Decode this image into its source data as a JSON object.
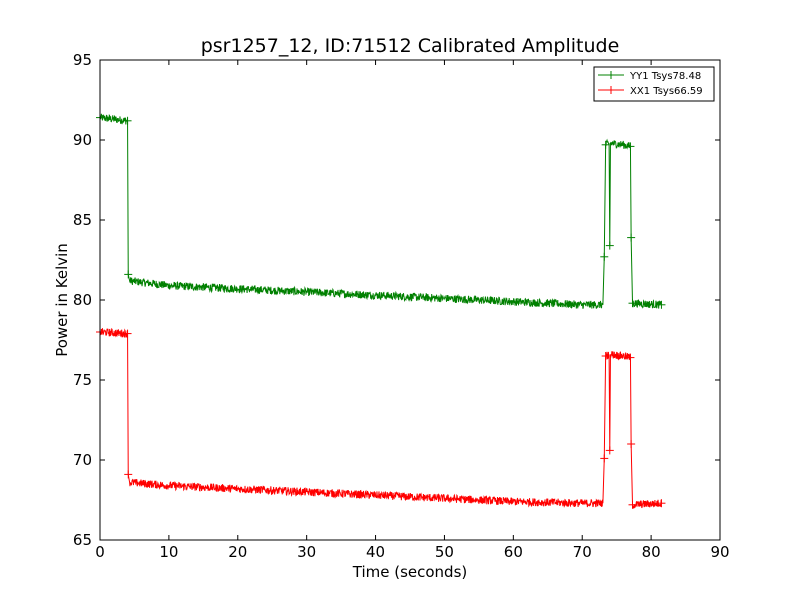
{
  "chart_data": {
    "type": "line",
    "title": "psr1257_12, ID:71512 Calibrated Amplitude",
    "xlabel": "Time (seconds)",
    "ylabel": "Power in Kelvin",
    "xlim": [
      0,
      90
    ],
    "ylim": [
      65,
      95
    ],
    "xticks": [
      "0",
      "10",
      "20",
      "30",
      "40",
      "50",
      "60",
      "70",
      "80",
      "90"
    ],
    "yticks": [
      "65",
      "70",
      "75",
      "80",
      "85",
      "90",
      "95"
    ],
    "grid": false,
    "legend_position": "top-right",
    "series": [
      {
        "name": "YY1 Tsys78.48",
        "color": "#008000",
        "marker": "+",
        "noise": 0.25,
        "points": [
          [
            0.0,
            91.4
          ],
          [
            4.0,
            91.2
          ],
          [
            4.1,
            81.6
          ],
          [
            4.3,
            81.2
          ],
          [
            10,
            80.9
          ],
          [
            20,
            80.7
          ],
          [
            30,
            80.5
          ],
          [
            40,
            80.3
          ],
          [
            50,
            80.1
          ],
          [
            60,
            79.9
          ],
          [
            70,
            79.7
          ],
          [
            73.0,
            79.7
          ],
          [
            73.2,
            82.7
          ],
          [
            73.4,
            89.7
          ],
          [
            73.9,
            89.8
          ],
          [
            74.0,
            83.4
          ],
          [
            74.1,
            89.8
          ],
          [
            76,
            89.7
          ],
          [
            77.0,
            89.6
          ],
          [
            77.1,
            83.9
          ],
          [
            77.3,
            79.8
          ],
          [
            81.5,
            79.7
          ]
        ],
        "markers_at": [
          0.0,
          4.0,
          4.1,
          73.2,
          73.4,
          74.0,
          77.0,
          77.1,
          77.3,
          81.5
        ]
      },
      {
        "name": "XX1 Tsys66.59",
        "color": "#ff0000",
        "marker": "+",
        "noise": 0.25,
        "points": [
          [
            0.0,
            78.0
          ],
          [
            4.0,
            77.9
          ],
          [
            4.1,
            69.1
          ],
          [
            4.3,
            68.6
          ],
          [
            10,
            68.4
          ],
          [
            20,
            68.2
          ],
          [
            30,
            68.0
          ],
          [
            40,
            67.8
          ],
          [
            50,
            67.6
          ],
          [
            60,
            67.4
          ],
          [
            70,
            67.3
          ],
          [
            73.0,
            67.3
          ],
          [
            73.2,
            70.1
          ],
          [
            73.4,
            76.5
          ],
          [
            73.9,
            76.6
          ],
          [
            74.0,
            70.6
          ],
          [
            74.1,
            76.6
          ],
          [
            76,
            76.5
          ],
          [
            77.0,
            76.4
          ],
          [
            77.1,
            71.0
          ],
          [
            77.3,
            67.2
          ],
          [
            81.5,
            67.3
          ]
        ],
        "markers_at": [
          0.0,
          4.0,
          4.1,
          73.2,
          73.4,
          74.0,
          77.0,
          77.1,
          77.3,
          81.5
        ]
      }
    ]
  }
}
